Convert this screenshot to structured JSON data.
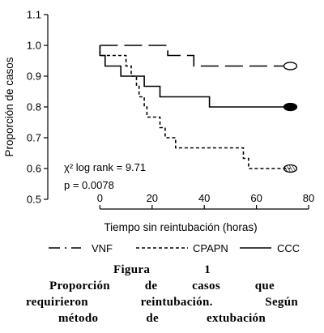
{
  "chart_data": {
    "type": "line",
    "xlabel": "Tiempo sin reintubación (horas)",
    "ylabel": "Proporción de casos",
    "xlim": [
      -20,
      80
    ],
    "ylim": [
      0.5,
      1.1
    ],
    "xticks": [
      0,
      20,
      40,
      60,
      80
    ],
    "yticks": [
      0.5,
      0.6,
      0.7,
      0.8,
      0.9,
      1.0,
      1.1
    ],
    "xtick_labels": [
      "0",
      "20",
      "40",
      "60",
      "80"
    ],
    "ytick_labels": [
      "0.5",
      "0.6",
      "0.7",
      "0.8",
      "0.9",
      "1.0",
      "1.1"
    ],
    "series": [
      {
        "name": "VNF",
        "style": "dash-dot",
        "end_marker": "open",
        "points": [
          [
            0,
            1.0
          ],
          [
            26,
            1.0
          ],
          [
            26,
            0.967
          ],
          [
            36,
            0.967
          ],
          [
            36,
            0.933
          ],
          [
            73,
            0.933
          ]
        ]
      },
      {
        "name": "CPAPN",
        "style": "dotted",
        "end_marker": "hatched",
        "points": [
          [
            0,
            1.0
          ],
          [
            0,
            0.967
          ],
          [
            10,
            0.967
          ],
          [
            10,
            0.933
          ],
          [
            12,
            0.933
          ],
          [
            12,
            0.9
          ],
          [
            14,
            0.9
          ],
          [
            14,
            0.867
          ],
          [
            15,
            0.867
          ],
          [
            15,
            0.833
          ],
          [
            17,
            0.833
          ],
          [
            17,
            0.8
          ],
          [
            18,
            0.8
          ],
          [
            18,
            0.767
          ],
          [
            23,
            0.767
          ],
          [
            23,
            0.733
          ],
          [
            25,
            0.733
          ],
          [
            25,
            0.7
          ],
          [
            29,
            0.7
          ],
          [
            29,
            0.667
          ],
          [
            55,
            0.667
          ],
          [
            55,
            0.633
          ],
          [
            57,
            0.633
          ],
          [
            57,
            0.6
          ],
          [
            73,
            0.6
          ]
        ]
      },
      {
        "name": "CCC",
        "style": "solid",
        "end_marker": "filled",
        "points": [
          [
            0,
            1.0
          ],
          [
            0,
            0.967
          ],
          [
            2,
            0.967
          ],
          [
            2,
            0.933
          ],
          [
            8,
            0.933
          ],
          [
            8,
            0.9
          ],
          [
            17,
            0.9
          ],
          [
            17,
            0.867
          ],
          [
            23,
            0.867
          ],
          [
            23,
            0.833
          ],
          [
            42,
            0.833
          ],
          [
            42,
            0.8
          ],
          [
            73,
            0.8
          ]
        ]
      }
    ],
    "annotations": [
      "χ² log rank = 9.71",
      "p = 0.0078"
    ],
    "legend": [
      {
        "label": "VNF",
        "style": "dash-dot"
      },
      {
        "label": "CPAPN",
        "style": "dotted"
      },
      {
        "label": "CCC",
        "style": "solid"
      }
    ],
    "legend_position": "bottom"
  },
  "caption": {
    "line1": "Figura 1",
    "line2": "Proporción de casos que",
    "line3": "requirieron reintubación. Según",
    "line4": "método de extubación"
  }
}
